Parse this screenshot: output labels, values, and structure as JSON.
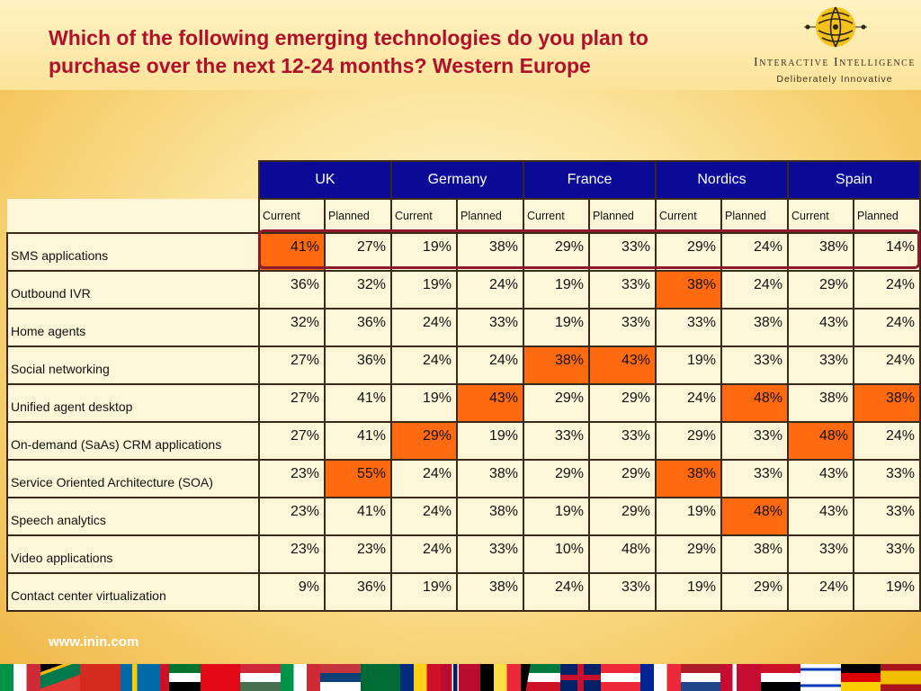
{
  "title": "Which of the following emerging technologies do you plan to purchase over the next 12-24 months? Western Europe",
  "brand": {
    "name": "Interactive Intelligence",
    "tagline": "Deliberately Innovative"
  },
  "table": {
    "countries": [
      "UK",
      "Germany",
      "France",
      "Nordics",
      "Spain"
    ],
    "subheaders": [
      "Current",
      "Planned",
      "Current",
      "Planned",
      "Current",
      "Planned",
      "Current",
      "Planned",
      "Current",
      "Planned"
    ],
    "rows": [
      {
        "label": "SMS applications",
        "values": [
          "41%",
          "27%",
          "19%",
          "38%",
          "29%",
          "33%",
          "29%",
          "24%",
          "38%",
          "14%"
        ],
        "highlight": [
          0
        ]
      },
      {
        "label": "Outbound IVR",
        "values": [
          "36%",
          "32%",
          "19%",
          "24%",
          "19%",
          "33%",
          "38%",
          "24%",
          "29%",
          "24%"
        ],
        "highlight": [
          6
        ]
      },
      {
        "label": "Home agents",
        "values": [
          "32%",
          "36%",
          "24%",
          "33%",
          "19%",
          "33%",
          "33%",
          "38%",
          "43%",
          "24%"
        ],
        "highlight": []
      },
      {
        "label": "Social networking",
        "values": [
          "27%",
          "36%",
          "24%",
          "24%",
          "38%",
          "43%",
          "19%",
          "33%",
          "33%",
          "24%"
        ],
        "highlight": [
          4,
          5
        ]
      },
      {
        "label": "Unified agent desktop",
        "values": [
          "27%",
          "41%",
          "19%",
          "43%",
          "29%",
          "29%",
          "24%",
          "48%",
          "38%",
          "38%"
        ],
        "highlight": [
          3,
          7,
          9
        ]
      },
      {
        "label": "On-demand (SaAs) CRM applications",
        "values": [
          "27%",
          "41%",
          "29%",
          "19%",
          "33%",
          "33%",
          "29%",
          "33%",
          "48%",
          "24%"
        ],
        "highlight": [
          2,
          8
        ]
      },
      {
        "label": "Service Oriented Architecture (SOA)",
        "values": [
          "23%",
          "55%",
          "24%",
          "38%",
          "29%",
          "29%",
          "38%",
          "33%",
          "43%",
          "33%"
        ],
        "highlight": [
          1,
          6
        ]
      },
      {
        "label": "Speech analytics",
        "values": [
          "23%",
          "41%",
          "24%",
          "38%",
          "19%",
          "29%",
          "19%",
          "48%",
          "43%",
          "33%"
        ],
        "highlight": [
          7
        ]
      },
      {
        "label": "Video applications",
        "values": [
          "23%",
          "23%",
          "24%",
          "33%",
          "10%",
          "48%",
          "29%",
          "38%",
          "33%",
          "33%"
        ],
        "highlight": []
      },
      {
        "label": "Contact center virtualization",
        "values": [
          "9%",
          "36%",
          "19%",
          "38%",
          "24%",
          "33%",
          "19%",
          "29%",
          "24%",
          "19%"
        ],
        "highlight": []
      }
    ]
  },
  "colors": {
    "title": "#b0102a",
    "header_bg": "#0a0a96",
    "highlight_cell": "#ff6a10",
    "highlight_box": "#8b1a2a"
  },
  "footer": {
    "url": "www.inin.com",
    "flags": [
      "italy-flag",
      "south-africa-flag",
      "switzerland-flag",
      "sweden-flag",
      "uae-flag",
      "turkey-flag",
      "hungary-flag",
      "italy-flag",
      "serbia-flag",
      "saudi-arabia-flag",
      "romania-flag",
      "norway-flag",
      "belgium-flag",
      "kuwait-flag",
      "uk-flag",
      "austria-flag",
      "france-flag",
      "netherlands-flag",
      "denmark-flag",
      "egypt-flag",
      "israel-flag",
      "germany-flag",
      "spain-flag"
    ]
  }
}
